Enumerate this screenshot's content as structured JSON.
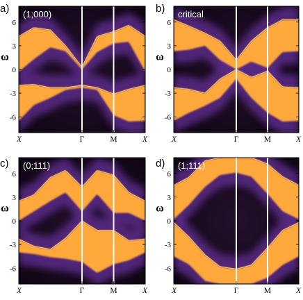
{
  "colors": {
    "background": "#0e0512",
    "glow": "#5a2a86",
    "band": "#ffa83a",
    "band_edge": "#ffe0a0",
    "divider": "#ffffff"
  },
  "chart_data": [
    {
      "type": "heatmap",
      "panel_letter": "a)",
      "inset_label": "(1;000)",
      "ylabel": "ω",
      "ylim": [
        -8,
        8
      ],
      "yticks": [
        -6,
        -3,
        0,
        3,
        6
      ],
      "ytick_labels": [
        "-6",
        "-3",
        "0",
        "3",
        "6"
      ],
      "xticks": [
        0,
        0.5,
        0.75,
        1
      ],
      "xtick_labels": [
        "X",
        "Γ",
        "M",
        "X"
      ],
      "x_dividers": [
        0.5,
        0.75
      ],
      "grid": false,
      "bands": [
        {
          "name": "lower",
          "x": [
            0,
            0.12,
            0.25,
            0.37,
            0.5,
            0.62,
            0.75,
            0.87,
            1
          ],
          "top": [
            -2.0,
            -1.9,
            -2.3,
            -2.3,
            -2.0,
            -2.3,
            -3.1,
            -2.5,
            -2.0
          ],
          "bottom": [
            -6.5,
            -4.5,
            -3.6,
            -2.6,
            -2.3,
            -2.6,
            -5.8,
            -6.6,
            -6.5
          ]
        },
        {
          "name": "upper",
          "x": [
            0,
            0.12,
            0.25,
            0.37,
            0.5,
            0.62,
            0.75,
            0.87,
            1
          ],
          "top": [
            4.2,
            5.3,
            5.0,
            3.0,
            0.3,
            4.2,
            4.8,
            5.6,
            4.2
          ],
          "bottom": [
            -0.3,
            1.3,
            2.8,
            2.3,
            0.0,
            2.2,
            3.3,
            3.5,
            -0.3
          ]
        }
      ]
    },
    {
      "type": "heatmap",
      "panel_letter": "b)",
      "inset_label": "critical",
      "ylabel": "ω",
      "ylim": [
        -8,
        8
      ],
      "yticks": [
        -6,
        -3,
        0,
        3,
        6
      ],
      "ytick_labels": [
        "-6",
        "-3",
        "0",
        "3",
        "6"
      ],
      "xticks": [
        0,
        0.5,
        0.75,
        1
      ],
      "xtick_labels": [
        "X",
        "Γ",
        "M",
        "X"
      ],
      "x_dividers": [
        0.5,
        0.75
      ],
      "grid": false,
      "bands": [
        {
          "name": "lower",
          "x": [
            0,
            0.12,
            0.25,
            0.37,
            0.5,
            0.62,
            0.75,
            0.87,
            1
          ],
          "top": [
            -2.3,
            -2.5,
            -3.0,
            -1.2,
            0.0,
            -1.0,
            -0.2,
            -2.2,
            -2.3
          ],
          "bottom": [
            -6.5,
            -5.5,
            -4.6,
            -3.6,
            -1.2,
            -3.6,
            -5.5,
            -6.6,
            -6.5
          ]
        },
        {
          "name": "upper",
          "x": [
            0,
            0.12,
            0.25,
            0.37,
            0.5,
            0.62,
            0.75,
            0.87,
            1
          ],
          "top": [
            6.3,
            5.5,
            4.6,
            3.6,
            1.2,
            3.6,
            5.3,
            6.3,
            6.3
          ],
          "bottom": [
            2.3,
            2.5,
            3.0,
            1.2,
            0.0,
            1.0,
            0.2,
            2.2,
            2.3
          ]
        }
      ]
    },
    {
      "type": "heatmap",
      "panel_letter": "c)",
      "inset_label": "(0;111)",
      "ylabel": "ω",
      "ylim": [
        -8,
        8
      ],
      "yticks": [
        -6,
        -3,
        0,
        3,
        6
      ],
      "ytick_labels": [
        "-6",
        "-3",
        "0",
        "3",
        "6"
      ],
      "xticks": [
        0,
        0.5,
        0.75,
        1
      ],
      "xtick_labels": [
        "X",
        "Γ",
        "M",
        "X"
      ],
      "x_dividers": [
        0.5,
        0.75
      ],
      "grid": false,
      "bands": [
        {
          "name": "lower",
          "x": [
            0,
            0.12,
            0.25,
            0.37,
            0.5,
            0.62,
            0.75,
            0.87,
            1
          ],
          "top": [
            -2.3,
            -3.2,
            -3.6,
            -2.2,
            0.0,
            -1.2,
            -1.2,
            -2.5,
            -2.3
          ],
          "bottom": [
            -4.0,
            -4.2,
            -4.6,
            -4.8,
            -5.2,
            -6.6,
            -5.5,
            -5.0,
            -4.0
          ]
        },
        {
          "name": "upper",
          "x": [
            0,
            0.12,
            0.25,
            0.37,
            0.5,
            0.62,
            0.75,
            0.87,
            1
          ],
          "top": [
            2.5,
            3.3,
            5.5,
            6.4,
            4.3,
            6.4,
            5.8,
            3.6,
            2.5
          ],
          "bottom": [
            0.0,
            1.2,
            2.5,
            3.6,
            1.2,
            3.4,
            1.0,
            1.0,
            0.0
          ]
        }
      ]
    },
    {
      "type": "heatmap",
      "panel_letter": "d)",
      "inset_label": "(1;111)",
      "ylabel": "ω",
      "ylim": [
        -8,
        8
      ],
      "yticks": [
        -6,
        -3,
        0,
        3,
        6
      ],
      "ytick_labels": [
        "-6",
        "-3",
        "0",
        "3",
        "6"
      ],
      "xticks": [
        0,
        0.5,
        0.75,
        1
      ],
      "xtick_labels": [
        "X",
        "Γ",
        "M",
        "X"
      ],
      "x_dividers": [
        0.5,
        0.75
      ],
      "grid": false,
      "bands": [
        {
          "name": "lower",
          "x": [
            0,
            0.12,
            0.25,
            0.37,
            0.5,
            0.62,
            0.75,
            0.87,
            1
          ],
          "top": [
            -0.2,
            -2.0,
            -4.3,
            -5.8,
            -6.1,
            -5.6,
            -3.4,
            -1.2,
            -0.2
          ],
          "bottom": [
            -4.5,
            -5.5,
            -7.6,
            -8.0,
            -8.0,
            -8.0,
            -7.2,
            -5.6,
            -4.5
          ]
        },
        {
          "name": "upper",
          "x": [
            0,
            0.12,
            0.25,
            0.37,
            0.5,
            0.62,
            0.75,
            0.87,
            1
          ],
          "top": [
            4.5,
            5.5,
            7.6,
            8.0,
            8.0,
            8.0,
            7.2,
            5.6,
            4.5
          ],
          "bottom": [
            0.2,
            2.0,
            4.3,
            5.8,
            6.1,
            5.6,
            3.4,
            1.2,
            0.2
          ]
        }
      ]
    }
  ]
}
